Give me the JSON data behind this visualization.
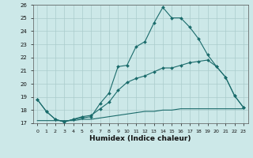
{
  "background_color": "#cce8e8",
  "grid_color": "#aacccc",
  "line_color": "#1a6b6b",
  "xlabel": "Humidex (Indice chaleur)",
  "xlim": [
    -0.5,
    23.5
  ],
  "ylim": [
    17,
    26
  ],
  "yticks": [
    17,
    18,
    19,
    20,
    21,
    22,
    23,
    24,
    25,
    26
  ],
  "xticks": [
    0,
    1,
    2,
    3,
    4,
    5,
    6,
    7,
    8,
    9,
    10,
    11,
    12,
    13,
    14,
    15,
    16,
    17,
    18,
    19,
    20,
    21,
    22,
    23
  ],
  "line1_x": [
    0,
    1,
    2,
    3,
    4,
    5,
    6,
    7,
    8,
    9,
    10,
    11,
    12,
    13,
    14,
    15,
    16,
    17,
    18,
    19,
    20,
    21,
    22,
    23
  ],
  "line1_y": [
    18.8,
    17.9,
    17.3,
    17.1,
    17.3,
    17.4,
    17.5,
    18.5,
    19.3,
    21.3,
    21.4,
    22.8,
    23.2,
    24.6,
    25.8,
    25.0,
    25.0,
    24.3,
    23.4,
    22.2,
    21.3,
    20.5,
    19.1,
    18.2
  ],
  "line2_x": [
    0,
    1,
    2,
    3,
    4,
    5,
    6,
    7,
    8,
    9,
    10,
    11,
    12,
    13,
    14,
    15,
    16,
    17,
    18,
    19,
    20,
    21,
    22,
    23
  ],
  "line2_y": [
    18.8,
    17.9,
    17.3,
    17.1,
    17.3,
    17.5,
    17.6,
    18.1,
    18.6,
    19.5,
    20.1,
    20.4,
    20.6,
    20.9,
    21.2,
    21.2,
    21.4,
    21.6,
    21.7,
    21.8,
    21.3,
    20.5,
    19.1,
    18.2
  ],
  "line3_x": [
    0,
    1,
    2,
    3,
    4,
    5,
    6,
    7,
    8,
    9,
    10,
    11,
    12,
    13,
    14,
    15,
    16,
    17,
    18,
    19,
    20,
    21,
    22,
    23
  ],
  "line3_y": [
    17.2,
    17.2,
    17.2,
    17.2,
    17.2,
    17.3,
    17.3,
    17.4,
    17.5,
    17.6,
    17.7,
    17.8,
    17.9,
    17.9,
    18.0,
    18.0,
    18.1,
    18.1,
    18.1,
    18.1,
    18.1,
    18.1,
    18.1,
    18.1
  ],
  "xlabel_fontsize": 6.5,
  "tick_fontsize": 5.0
}
